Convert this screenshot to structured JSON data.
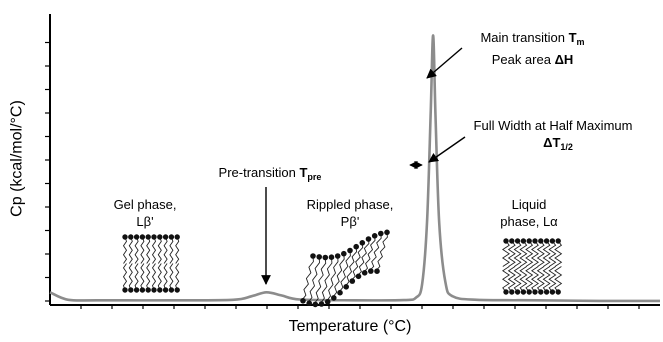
{
  "chart_data": {
    "type": "line",
    "title": "",
    "xlabel": "Temperature (°C)",
    "ylabel": "Cp (kcal/mol/°C)",
    "series": [
      {
        "name": "",
        "points": [
          {
            "x": 0.0,
            "y": 0.04
          },
          {
            "x": 0.03,
            "y": 0.012
          },
          {
            "x": 0.08,
            "y": 0.01
          },
          {
            "x": 0.2,
            "y": 0.01
          },
          {
            "x": 0.3,
            "y": 0.012
          },
          {
            "x": 0.33,
            "y": 0.025
          },
          {
            "x": 0.355,
            "y": 0.04
          },
          {
            "x": 0.38,
            "y": 0.028
          },
          {
            "x": 0.41,
            "y": 0.013
          },
          {
            "x": 0.5,
            "y": 0.01
          },
          {
            "x": 0.58,
            "y": 0.011
          },
          {
            "x": 0.6,
            "y": 0.02
          },
          {
            "x": 0.61,
            "y": 0.07
          },
          {
            "x": 0.618,
            "y": 0.3
          },
          {
            "x": 0.624,
            "y": 0.7
          },
          {
            "x": 0.628,
            "y": 1.0
          },
          {
            "x": 0.632,
            "y": 0.7
          },
          {
            "x": 0.638,
            "y": 0.3
          },
          {
            "x": 0.648,
            "y": 0.08
          },
          {
            "x": 0.66,
            "y": 0.025
          },
          {
            "x": 0.7,
            "y": 0.012
          },
          {
            "x": 0.8,
            "y": 0.01
          },
          {
            "x": 0.9,
            "y": 0.008
          },
          {
            "x": 1.0,
            "y": 0.008
          }
        ]
      }
    ],
    "xlim": [
      0,
      1
    ],
    "ylim": [
      0,
      1.05
    ],
    "grid": false,
    "axis_tick_labels": false,
    "line_color": "#8c8c8c",
    "axis_color": "#000000"
  },
  "annotations": {
    "main": {
      "line1": "Main transition ",
      "tm": "T",
      "tm_sub": "m",
      "line2": "Peak area ",
      "dh": "ΔH"
    },
    "fwhm": {
      "line1": "Full Width at Half Maximum",
      "dt": "ΔT",
      "dt_sub": "1/2"
    },
    "pre": {
      "text": "Pre-transition ",
      "t": "T",
      "t_sub": "pre"
    },
    "phases": {
      "gel": {
        "line1": "Gel phase,",
        "line2": "Lβ'"
      },
      "rippled": {
        "line1": "Rippled phase,",
        "line2": "Pβ'"
      },
      "liquid": {
        "line1": "Liquid",
        "line2": "phase, Lα"
      }
    }
  }
}
